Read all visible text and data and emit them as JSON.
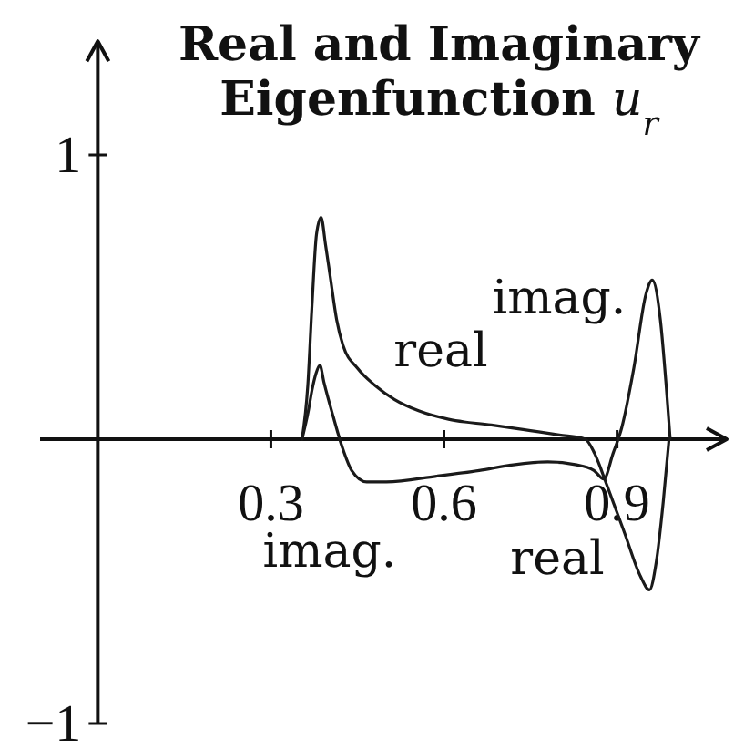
{
  "chart_data": {
    "type": "line",
    "title": "Real and Imaginary Eigenfunction u$_{r}$",
    "xlim": [
      -0.1,
      1.09
    ],
    "ylim": [
      -1,
      1.4
    ],
    "xticks": [
      0.3,
      0.6,
      0.9
    ],
    "yticks": [
      -1,
      1
    ],
    "series": [
      {
        "color": "#1a1a1a",
        "x": [
          0.354,
          0.364,
          0.371,
          0.379,
          0.387,
          0.395,
          0.403,
          0.414,
          0.425,
          0.45,
          0.48,
          0.514,
          0.556,
          0.608,
          0.682,
          0.75,
          0.8,
          0.845,
          0.861,
          0.882,
          0.913,
          0.94,
          0.956,
          0.968,
          0.98,
          0.99
        ],
        "values": [
          0,
          0.19,
          0.46,
          0.72,
          0.78,
          0.68,
          0.57,
          0.42,
          0.33,
          0.25,
          0.19,
          0.14,
          0.1,
          0.07,
          0.05,
          0.03,
          0.015,
          0,
          -0.05,
          -0.16,
          -0.33,
          -0.48,
          -0.53,
          -0.43,
          -0.22,
          0
        ]
      },
      {
        "color": "#1a1a1a",
        "x": [
          0.354,
          0.365,
          0.371,
          0.378,
          0.385,
          0.392,
          0.408,
          0.424,
          0.44,
          0.466,
          0.5,
          0.587,
          0.661,
          0.72,
          0.78,
          0.83,
          0.86,
          0.877,
          0.893,
          0.908,
          0.929,
          0.95,
          0.961,
          0.975,
          0.985,
          0.992
        ],
        "values": [
          0,
          0.1,
          0.17,
          0.23,
          0.26,
          0.2,
          0.08,
          -0.03,
          -0.11,
          -0.15,
          -0.15,
          -0.13,
          -0.11,
          -0.09,
          -0.08,
          -0.09,
          -0.11,
          -0.14,
          -0.05,
          0.04,
          0.25,
          0.51,
          0.56,
          0.42,
          0.19,
          0
        ]
      }
    ],
    "annotations": [
      "real",
      "imag.",
      "imag.",
      "real"
    ]
  }
}
